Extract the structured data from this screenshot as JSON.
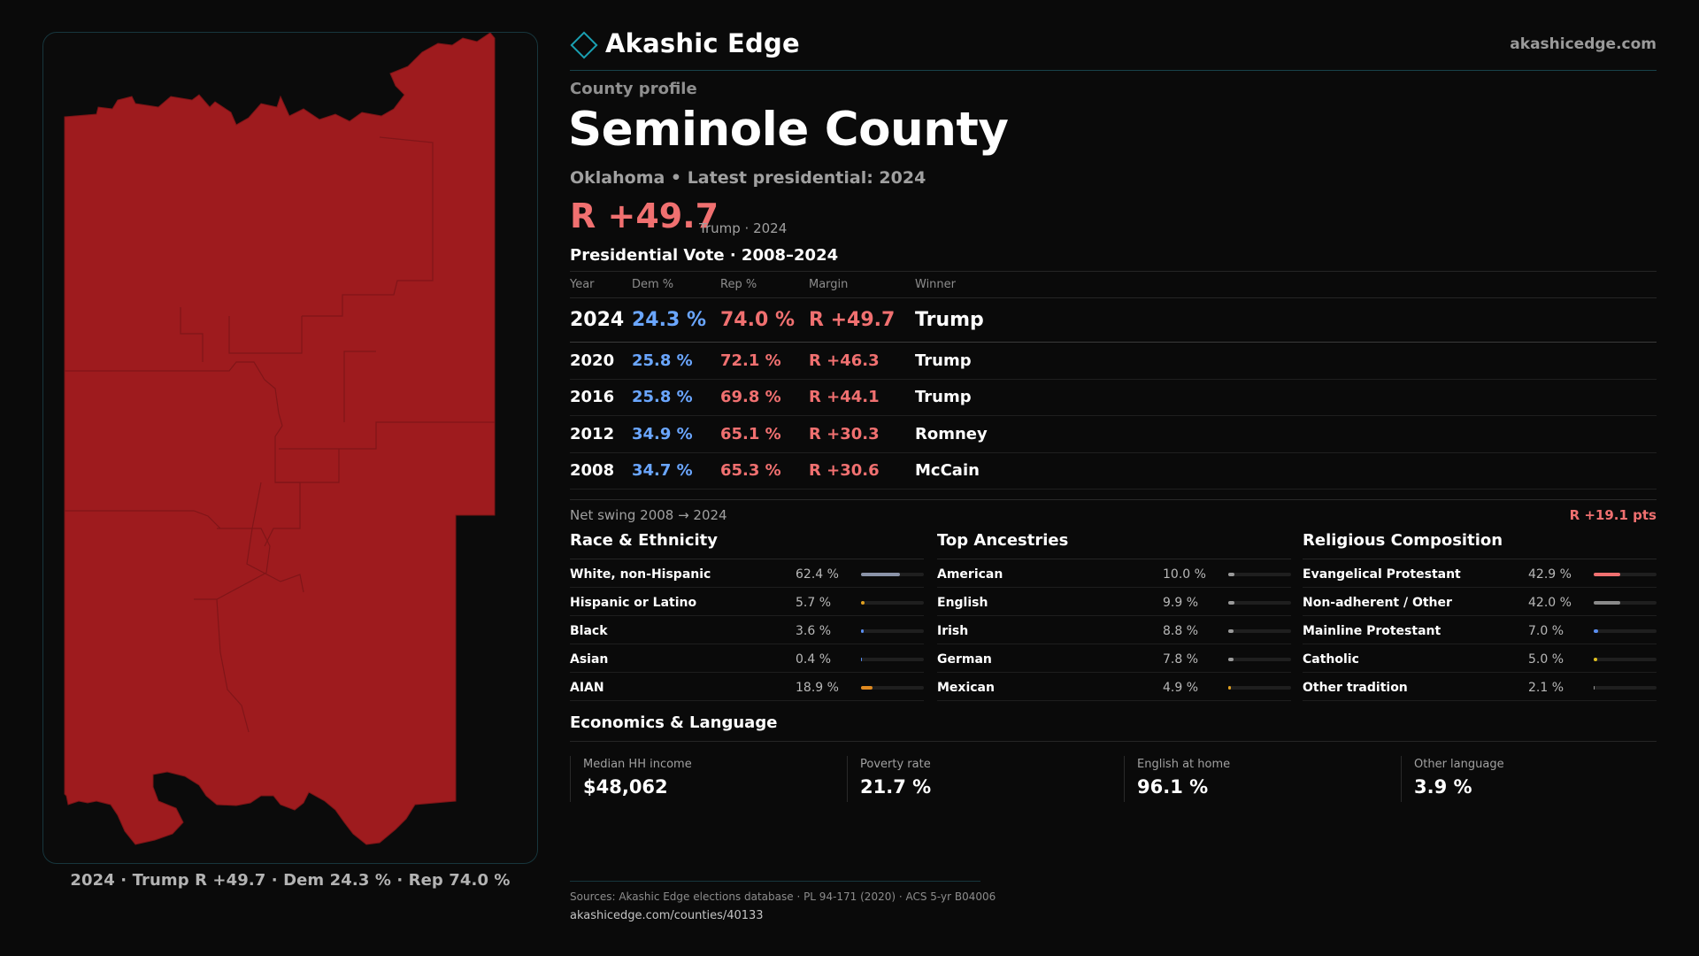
{
  "map": {
    "caption": "2024 · Trump R +49.7 · Dem 24.3 % · Rep 74.0 %",
    "fill_color": "#9e1b1e",
    "border_color": "#7a1416"
  },
  "header": {
    "brand_name": "Akashic Edge",
    "site": "akashicedge.com",
    "accent_color": "#1aa0b2"
  },
  "profile": {
    "eyebrow": "County profile",
    "title": "Seminole County",
    "subtitle": "Oklahoma • Latest presidential: 2024",
    "margin": "R +49.7",
    "margin_note": "Trump · 2024"
  },
  "vote_table": {
    "heading": "Presidential Vote · 2008–2024",
    "columns": [
      "Year",
      "Dem %",
      "Rep %",
      "Margin",
      "Winner"
    ],
    "rows": [
      {
        "year": "2024",
        "dem": "24.3 %",
        "rep": "74.0 %",
        "margin": "R +49.7",
        "winner": "Trump"
      },
      {
        "year": "2020",
        "dem": "25.8 %",
        "rep": "72.1 %",
        "margin": "R +46.3",
        "winner": "Trump"
      },
      {
        "year": "2016",
        "dem": "25.8 %",
        "rep": "69.8 %",
        "margin": "R +44.1",
        "winner": "Trump"
      },
      {
        "year": "2012",
        "dem": "34.9 %",
        "rep": "65.1 %",
        "margin": "R +30.3",
        "winner": "Romney"
      },
      {
        "year": "2008",
        "dem": "34.7 %",
        "rep": "65.3 %",
        "margin": "R +30.6",
        "winner": "McCain"
      }
    ],
    "net_swing_label": "Net swing 2008 → 2024",
    "net_swing_value": "R +19.1 pts",
    "dem_color": "#6aa6ff",
    "rep_color": "#f07070"
  },
  "race": {
    "title": "Race & Ethnicity",
    "items": [
      {
        "label": "White, non-Hispanic",
        "value": "62.4 %",
        "pct": 62.4,
        "color": "#8a93a8"
      },
      {
        "label": "Hispanic or Latino",
        "value": "5.7 %",
        "pct": 5.7,
        "color": "#e0a020"
      },
      {
        "label": "Black",
        "value": "3.6 %",
        "pct": 3.6,
        "color": "#5a8ef0"
      },
      {
        "label": "Asian",
        "value": "0.4 %",
        "pct": 0.4,
        "color": "#5a8ef0"
      },
      {
        "label": "AIAN",
        "value": "18.9 %",
        "pct": 18.9,
        "color": "#e08a20"
      }
    ]
  },
  "ancestry": {
    "title": "Top Ancestries",
    "items": [
      {
        "label": "American",
        "value": "10.0 %",
        "pct": 10.0,
        "color": "#9a9a9a"
      },
      {
        "label": "English",
        "value": "9.9 %",
        "pct": 9.9,
        "color": "#9a9a9a"
      },
      {
        "label": "Irish",
        "value": "8.8 %",
        "pct": 8.8,
        "color": "#9a9a9a"
      },
      {
        "label": "German",
        "value": "7.8 %",
        "pct": 7.8,
        "color": "#9a9a9a"
      },
      {
        "label": "Mexican",
        "value": "4.9 %",
        "pct": 4.9,
        "color": "#e0a020"
      }
    ]
  },
  "religion": {
    "title": "Religious Composition",
    "items": [
      {
        "label": "Evangelical Protestant",
        "value": "42.9 %",
        "pct": 42.9,
        "color": "#f07070"
      },
      {
        "label": "Non-adherent / Other",
        "value": "42.0 %",
        "pct": 42.0,
        "color": "#8a8a8a"
      },
      {
        "label": "Mainline Protestant",
        "value": "7.0 %",
        "pct": 7.0,
        "color": "#5a8ef0"
      },
      {
        "label": "Catholic",
        "value": "5.0 %",
        "pct": 5.0,
        "color": "#e0c020"
      },
      {
        "label": "Other tradition",
        "value": "2.1 %",
        "pct": 2.1,
        "color": "#9a9a9a"
      }
    ]
  },
  "economics": {
    "title": "Economics & Language",
    "cards": [
      {
        "label": "Median HH income",
        "value": "$48,062"
      },
      {
        "label": "Poverty rate",
        "value": "21.7 %"
      },
      {
        "label": "English at home",
        "value": "96.1 %"
      },
      {
        "label": "Other language",
        "value": "3.9 %"
      }
    ]
  },
  "footer": {
    "sources": "Sources: Akashic Edge elections database · PL 94-171 (2020) · ACS 5-yr B04006",
    "url": "akashicedge.com/counties/40133"
  }
}
